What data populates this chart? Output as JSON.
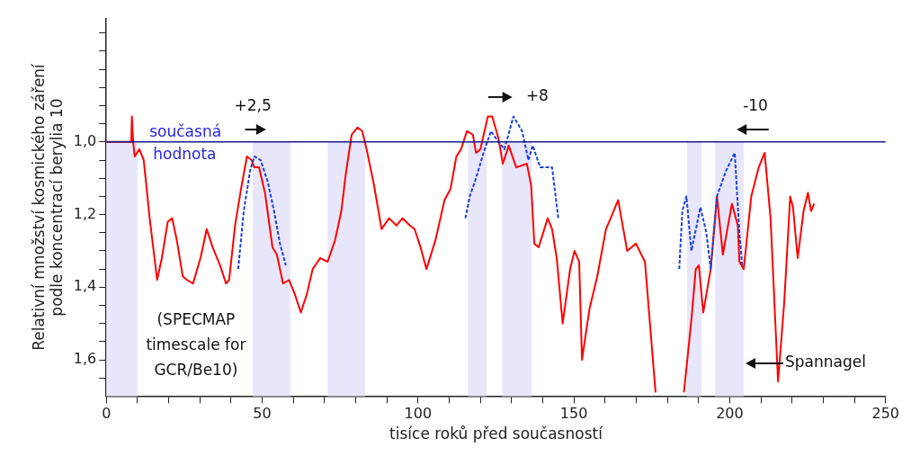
{
  "chart_data": {
    "type": "line",
    "xlabel": "tisíce roků před současností",
    "ylabel": "Relativní množství kosmického záření\npodle koncentrací berylia 10",
    "xlim": [
      0,
      250
    ],
    "ylim": [
      1.7,
      0.66
    ],
    "xticks": [
      0,
      {
        "value": 10,
        "label": null
      },
      {
        "value": 20,
        "label": null
      },
      {
        "value": 30,
        "label": null
      },
      {
        "value": 40,
        "label": null
      },
      50,
      {
        "value": 60,
        "label": null
      },
      {
        "value": 70,
        "label": null
      },
      {
        "value": 80,
        "label": null
      },
      {
        "value": 90,
        "label": null
      },
      100,
      {
        "value": 110,
        "label": null
      },
      {
        "value": 120,
        "label": null
      },
      {
        "value": 130,
        "label": null
      },
      {
        "value": 140,
        "label": null
      },
      150,
      {
        "value": 160,
        "label": null
      },
      {
        "value": 170,
        "label": null
      },
      {
        "value": 180,
        "label": null
      },
      {
        "value": 190,
        "label": null
      },
      200,
      {
        "value": 210,
        "label": null
      },
      {
        "value": 220,
        "label": null
      },
      {
        "value": 230,
        "label": null
      },
      {
        "value": 240,
        "label": null
      },
      250
    ],
    "yticks": [
      {
        "value": 0.7,
        "label": null
      },
      {
        "value": 0.75,
        "label": null
      },
      {
        "value": 0.8,
        "label": null
      },
      {
        "value": 0.85,
        "label": null
      },
      {
        "value": 0.9,
        "label": null
      },
      {
        "value": 0.95,
        "label": null
      },
      {
        "value": 1.0,
        "label": "1,0"
      },
      {
        "value": 1.05,
        "label": null
      },
      {
        "value": 1.1,
        "label": null
      },
      {
        "value": 1.15,
        "label": null
      },
      {
        "value": 1.2,
        "label": "1,2"
      },
      {
        "value": 1.25,
        "label": null
      },
      {
        "value": 1.3,
        "label": null
      },
      {
        "value": 1.35,
        "label": null
      },
      {
        "value": 1.4,
        "label": "1,4"
      },
      {
        "value": 1.45,
        "label": null
      },
      {
        "value": 1.5,
        "label": null
      },
      {
        "value": 1.55,
        "label": null
      },
      {
        "value": 1.6,
        "label": "1,6"
      },
      {
        "value": 1.65,
        "label": null
      }
    ],
    "grid": false,
    "legend": false,
    "marker": "none",
    "series": [
      {
        "color": "#ff0000",
        "line_style": "solid",
        "x": [
          0,
          8,
          8.2,
          8.6,
          9.1,
          10.6,
          12,
          13.9,
          16.3,
          17.8,
          19.7,
          21.1,
          22.6,
          24.5,
          25.9,
          27.8,
          30.2,
          32.2,
          34.1,
          36.5,
          38.4,
          39.4,
          41.3,
          43.2,
          45.1,
          46.6,
          47.5,
          49,
          50.9,
          53.3,
          54.7,
          56.7,
          58.6,
          60.5,
          62.4,
          64.3,
          66.2,
          68.6,
          71,
          73.4,
          75.4,
          76.8,
          78.7,
          80.6,
          82.1,
          83.5,
          85.9,
          88.3,
          90.7,
          93.1,
          95,
          97.4,
          98.9,
          100.8,
          102.7,
          105.6,
          108.5,
          110.4,
          112.3,
          113.8,
          115.7,
          117.6,
          118.6,
          120,
          122.4,
          123.8,
          125.8,
          127.2,
          129.1,
          131.5,
          134.9,
          136.3,
          137.3,
          138.7,
          141.6,
          143,
          144.5,
          146.4,
          148.8,
          150.2,
          151.7,
          152.6,
          155,
          157.5,
          160.3,
          161.8,
          164.2,
          167.1,
          169.9,
          172.8,
          176.2,
          180,
          185.3,
          187.7,
          189.1,
          190.1,
          191.5,
          193.9,
          195.9,
          197.8,
          200.7,
          202.6,
          203.1,
          204.5,
          206.9,
          209.3,
          211.2,
          213.1,
          215.5,
          217.5,
          219.4,
          220.3,
          221.8,
          223.7,
          225.1,
          226.1,
          227.1
        ],
        "values": [
          1.0,
          1.0,
          0.93,
          1.0,
          1.04,
          1.02,
          1.05,
          1.21,
          1.38,
          1.32,
          1.22,
          1.21,
          1.27,
          1.37,
          1.38,
          1.39,
          1.32,
          1.24,
          1.29,
          1.34,
          1.39,
          1.38,
          1.23,
          1.13,
          1.04,
          1.05,
          1.07,
          1.07,
          1.14,
          1.29,
          1.31,
          1.39,
          1.38,
          1.42,
          1.47,
          1.42,
          1.35,
          1.32,
          1.33,
          1.27,
          1.19,
          1.09,
          0.98,
          0.96,
          0.97,
          1.02,
          1.12,
          1.24,
          1.21,
          1.23,
          1.21,
          1.23,
          1.24,
          1.29,
          1.35,
          1.27,
          1.16,
          1.13,
          1.04,
          1.02,
          0.97,
          0.98,
          1.03,
          1.02,
          0.93,
          0.93,
          0.99,
          1.06,
          1.01,
          1.07,
          1.06,
          1.12,
          1.28,
          1.29,
          1.21,
          1.24,
          1.32,
          1.5,
          1.35,
          1.3,
          1.33,
          1.6,
          1.46,
          1.37,
          1.24,
          1.21,
          1.16,
          1.3,
          1.28,
          1.33,
          1.69,
          null,
          1.69,
          1.49,
          1.35,
          1.34,
          1.47,
          1.35,
          1.15,
          1.31,
          1.17,
          1.23,
          1.33,
          1.35,
          1.15,
          1.07,
          1.03,
          1.21,
          1.66,
          1.44,
          1.15,
          1.18,
          1.32,
          1.19,
          1.14,
          1.19,
          1.17
        ]
      },
      {
        "color": "#1a3fd9",
        "line_style": "dashed",
        "x": [
          42.3,
          44.1,
          46.1,
          47.5,
          49.5,
          51.8,
          53.8,
          55.7,
          57.6,
          80,
          115.2,
          116.6,
          118.6,
          121,
          123.4,
          125.8,
          127.7,
          130.6,
          133.4,
          135.4,
          136.8,
          139.2,
          143,
          145,
          160,
          183.8,
          184.8,
          186.1,
          187.7,
          190.6,
          192.5,
          193.9,
          195.9,
          198.8,
          201.6,
          203.1,
          204
        ],
        "values": [
          1.35,
          1.19,
          1.08,
          1.04,
          1.05,
          1.11,
          1.19,
          1.28,
          1.34,
          null,
          1.21,
          1.15,
          1.1,
          1.03,
          0.97,
          1.0,
          1.02,
          0.93,
          0.97,
          1.05,
          1.01,
          1.07,
          1.07,
          1.21,
          null,
          1.35,
          1.19,
          1.15,
          1.3,
          1.18,
          1.25,
          1.35,
          1.15,
          1.08,
          1.03,
          1.25,
          1.34
        ]
      }
    ],
    "ref_lines": [
      {
        "axis": "y",
        "value": 1.0,
        "label": "současná hodnota",
        "color": "#1a1a8c"
      }
    ],
    "bands": [
      {
        "axis": "x",
        "from": 0,
        "to": 10,
        "color": "#e8e6fa"
      },
      {
        "axis": "x",
        "from": 47,
        "to": 59,
        "color": "#e8e6fa"
      },
      {
        "axis": "x",
        "from": 71,
        "to": 83,
        "color": "#e8e6fa"
      },
      {
        "axis": "x",
        "from": 116,
        "to": 122,
        "color": "#e8e6fa"
      },
      {
        "axis": "x",
        "from": 127,
        "to": 136.5,
        "color": "#e8e6fa"
      },
      {
        "axis": "x",
        "from": 186.3,
        "to": 190.9,
        "color": "#e8e6fa"
      },
      {
        "axis": "x",
        "from": 195.3,
        "to": 204.5,
        "color": "#e8e6fa"
      }
    ],
    "annotations": [
      "+2,5",
      "+8",
      "-10",
      {
        "text": "Spannagel",
        "x": 204.5,
        "y": 1.61
      },
      "(SPECMAP\ntimescale for\nGCR/Be10)"
    ]
  }
}
